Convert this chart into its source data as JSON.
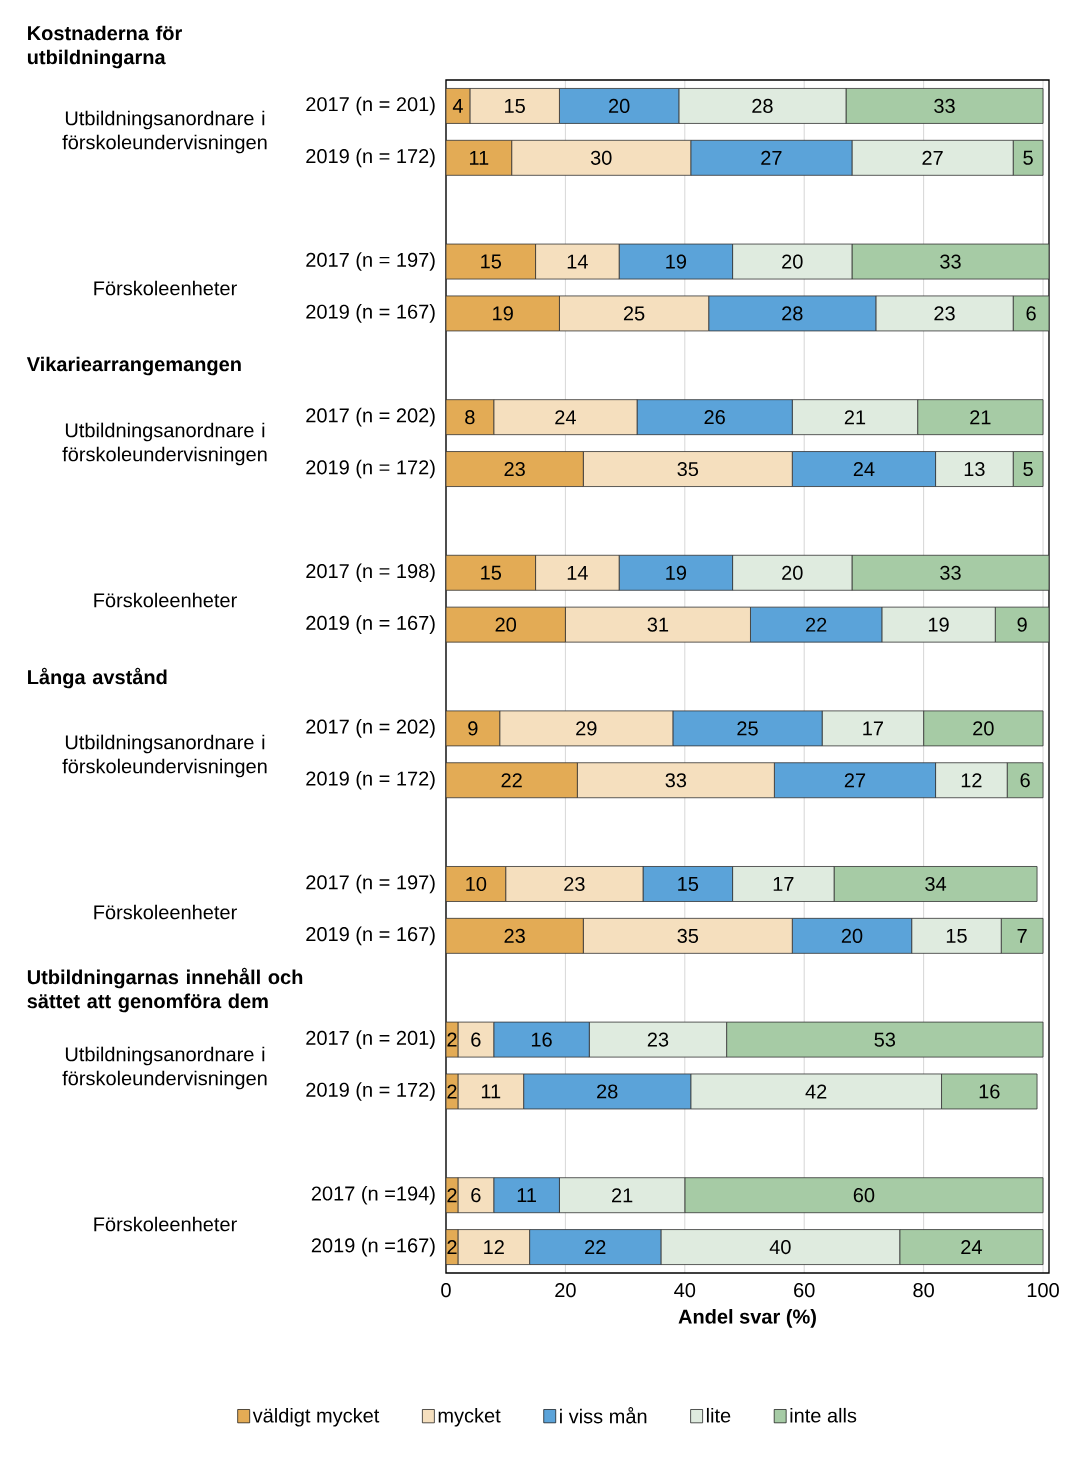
{
  "chart_data": {
    "type": "bar",
    "orientation": "horizontal",
    "stacked": true,
    "categories": [
      "2017 (n = 201)",
      "2019 (n = 172)",
      null,
      "2017 (n = 197)",
      "2019 (n = 167)",
      null,
      "2017 (n = 202)",
      "2019 (n = 172)",
      null,
      "2017 (n = 198)",
      "2019 (n = 167)",
      null,
      "2017 (n = 202)",
      "2019 (n = 172)",
      null,
      "2017 (n = 197)",
      "2019 (n = 167)",
      null,
      "2017 (n = 201)",
      "2019 (n = 172)",
      null,
      "2017 (n =194)",
      "2019 (n =167)"
    ],
    "series": [
      {
        "name": "väldigt mycket",
        "color": "#e3ab55",
        "values": [
          4,
          11,
          null,
          15,
          19,
          null,
          8,
          23,
          null,
          15,
          20,
          null,
          9,
          22,
          null,
          10,
          23,
          null,
          2,
          2,
          null,
          2,
          2
        ]
      },
      {
        "name": "mycket",
        "color": "#f5dfbe",
        "values": [
          15,
          30,
          null,
          14,
          25,
          null,
          24,
          35,
          null,
          14,
          31,
          null,
          29,
          33,
          null,
          23,
          35,
          null,
          6,
          11,
          null,
          6,
          12
        ]
      },
      {
        "name": "i viss mån",
        "color": "#5ba3d9",
        "values": [
          20,
          27,
          null,
          19,
          28,
          null,
          26,
          24,
          null,
          19,
          22,
          null,
          25,
          27,
          null,
          15,
          20,
          null,
          16,
          28,
          null,
          11,
          22
        ]
      },
      {
        "name": "lite",
        "color": "#dfebdf",
        "values": [
          28,
          27,
          null,
          20,
          23,
          null,
          21,
          13,
          null,
          20,
          19,
          null,
          17,
          12,
          null,
          17,
          15,
          null,
          23,
          42,
          null,
          21,
          40
        ]
      },
      {
        "name": "inte alls",
        "color": "#a6cba5",
        "values": [
          33,
          5,
          null,
          33,
          6,
          null,
          21,
          5,
          null,
          33,
          9,
          null,
          20,
          6,
          null,
          34,
          7,
          null,
          53,
          16,
          null,
          60,
          24
        ]
      }
    ],
    "xlim": [
      0,
      101
    ],
    "xticks": [
      0,
      20,
      40,
      60,
      80,
      100
    ],
    "xlabel": "Andel svar (%)",
    "grid": "x",
    "legend": "bottom",
    "data_labels": true,
    "annotations": [
      "Kostnaderna för utbildningarna",
      "Utbildningsanordnare i förskoleundervisningen",
      "Förskoleenheter",
      "Vikariearrangemangen",
      "Utbildningsanordnare i förskoleundervisningen",
      "Förskoleenheter",
      "Långa avstånd",
      "Utbildningsanordnare i förskoleundervisningen",
      "Förskoleenheter",
      "Utbildningarnas innehåll och sättet att genomföra dem",
      "Utbildningsanordnare i förskoleundervisningen",
      "Förskoleenheter"
    ]
  }
}
